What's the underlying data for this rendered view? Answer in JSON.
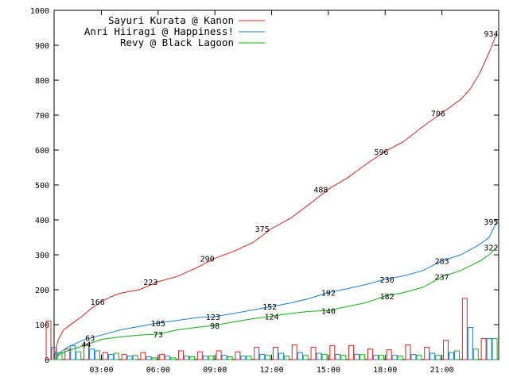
{
  "chart_data": {
    "type": "line",
    "title": "",
    "xlabel": "",
    "ylabel": "",
    "x_unit": "hours since 00:00",
    "xlim": [
      0.5,
      24.0
    ],
    "ylim": [
      0,
      1000
    ],
    "grid": false,
    "legend_position": "top-left",
    "y_ticks": [
      "0",
      "100",
      "200",
      "300",
      "400",
      "500",
      "600",
      "700",
      "800",
      "900",
      "1000"
    ],
    "x_ticks": [
      {
        "x": 3,
        "label": "03:00"
      },
      {
        "x": 6,
        "label": "06:00"
      },
      {
        "x": 9,
        "label": "09:00"
      },
      {
        "x": 12,
        "label": "12:00"
      },
      {
        "x": 15,
        "label": "15:00"
      },
      {
        "x": 18,
        "label": "18:00"
      },
      {
        "x": 21,
        "label": "21:00"
      }
    ],
    "series": [
      {
        "name": "Sayuri Kurata @ Kanon",
        "color": "#e02020",
        "points": [
          [
            0.5,
            0
          ],
          [
            0.7,
            55
          ],
          [
            1.0,
            85
          ],
          [
            1.5,
            105
          ],
          [
            2.0,
            125
          ],
          [
            2.5,
            148
          ],
          [
            3.0,
            166
          ],
          [
            3.5,
            180
          ],
          [
            4.0,
            190
          ],
          [
            5.0,
            200
          ],
          [
            6.0,
            223
          ],
          [
            7.0,
            238
          ],
          [
            8.0,
            262
          ],
          [
            9.0,
            290
          ],
          [
            10.0,
            310
          ],
          [
            11.0,
            335
          ],
          [
            12.0,
            375
          ],
          [
            13.0,
            405
          ],
          [
            14.0,
            445
          ],
          [
            15.0,
            488
          ],
          [
            16.0,
            520
          ],
          [
            17.0,
            560
          ],
          [
            18.0,
            596
          ],
          [
            19.0,
            625
          ],
          [
            20.0,
            668
          ],
          [
            21.0,
            706
          ],
          [
            22.0,
            745
          ],
          [
            22.5,
            775
          ],
          [
            23.0,
            820
          ],
          [
            23.5,
            880
          ],
          [
            23.9,
            934
          ]
        ],
        "labels": [
          {
            "x": 2.8,
            "y": 166,
            "text": "166"
          },
          {
            "x": 5.6,
            "y": 223,
            "text": "223"
          },
          {
            "x": 8.6,
            "y": 290,
            "text": "290"
          },
          {
            "x": 11.5,
            "y": 375,
            "text": "375"
          },
          {
            "x": 14.6,
            "y": 488,
            "text": "488"
          },
          {
            "x": 17.8,
            "y": 596,
            "text": "596"
          },
          {
            "x": 20.8,
            "y": 706,
            "text": "706"
          },
          {
            "x": 23.6,
            "y": 934,
            "text": "934"
          }
        ]
      },
      {
        "name": "Anri Hiiragi @ Happiness!",
        "color": "#1a7fd4",
        "points": [
          [
            0.5,
            0
          ],
          [
            0.8,
            20
          ],
          [
            1.2,
            35
          ],
          [
            1.6,
            45
          ],
          [
            2.0,
            55
          ],
          [
            2.5,
            63
          ],
          [
            3.0,
            70
          ],
          [
            4.0,
            85
          ],
          [
            5.0,
            95
          ],
          [
            6.0,
            105
          ],
          [
            7.0,
            112
          ],
          [
            8.0,
            120
          ],
          [
            9.0,
            123
          ],
          [
            10.0,
            132
          ],
          [
            11.0,
            142
          ],
          [
            12.0,
            152
          ],
          [
            13.0,
            162
          ],
          [
            14.0,
            175
          ],
          [
            15.0,
            192
          ],
          [
            16.0,
            203
          ],
          [
            17.0,
            215
          ],
          [
            18.0,
            230
          ],
          [
            19.0,
            240
          ],
          [
            20.0,
            255
          ],
          [
            21.0,
            283
          ],
          [
            22.0,
            300
          ],
          [
            23.0,
            330
          ],
          [
            23.5,
            350
          ],
          [
            23.9,
            395
          ]
        ],
        "labels": [
          {
            "x": 2.4,
            "y": 63,
            "text": "63"
          },
          {
            "x": 6.0,
            "y": 105,
            "text": "105"
          },
          {
            "x": 8.9,
            "y": 123,
            "text": "123"
          },
          {
            "x": 11.9,
            "y": 152,
            "text": "152"
          },
          {
            "x": 15.0,
            "y": 192,
            "text": "192"
          },
          {
            "x": 18.1,
            "y": 230,
            "text": "230"
          },
          {
            "x": 21.0,
            "y": 283,
            "text": "283"
          },
          {
            "x": 23.6,
            "y": 395,
            "text": "395"
          }
        ]
      },
      {
        "name": "Revy @ Black Lagoon",
        "color": "#10b010",
        "points": [
          [
            0.5,
            0
          ],
          [
            0.8,
            15
          ],
          [
            1.2,
            25
          ],
          [
            1.8,
            35
          ],
          [
            2.3,
            44
          ],
          [
            3.0,
            58
          ],
          [
            4.0,
            65
          ],
          [
            5.0,
            70
          ],
          [
            6.0,
            73
          ],
          [
            7.0,
            85
          ],
          [
            8.0,
            92
          ],
          [
            9.0,
            98
          ],
          [
            10.0,
            108
          ],
          [
            11.0,
            117
          ],
          [
            12.0,
            124
          ],
          [
            13.0,
            132
          ],
          [
            14.0,
            138
          ],
          [
            15.0,
            140
          ],
          [
            16.0,
            152
          ],
          [
            17.0,
            163
          ],
          [
            18.0,
            182
          ],
          [
            19.0,
            192
          ],
          [
            20.0,
            207
          ],
          [
            21.0,
            237
          ],
          [
            22.0,
            255
          ],
          [
            23.0,
            282
          ],
          [
            23.5,
            300
          ],
          [
            23.9,
            322
          ]
        ],
        "labels": [
          {
            "x": 2.2,
            "y": 44,
            "text": "44"
          },
          {
            "x": 6.0,
            "y": 73,
            "text": "73"
          },
          {
            "x": 9.0,
            "y": 98,
            "text": "98"
          },
          {
            "x": 12.0,
            "y": 124,
            "text": "124"
          },
          {
            "x": 15.0,
            "y": 140,
            "text": "140"
          },
          {
            "x": 18.1,
            "y": 182,
            "text": "182"
          },
          {
            "x": 21.0,
            "y": 237,
            "text": "237"
          },
          {
            "x": 23.6,
            "y": 322,
            "text": "322"
          }
        ]
      }
    ],
    "hourly_bars": {
      "note": "small hourly count bars along the baseline for each series",
      "hours": [
        0.5,
        1.5,
        2.5,
        3.5,
        4.5,
        5.5,
        6.5,
        7.5,
        8.5,
        9.5,
        10.5,
        11.5,
        12.5,
        13.5,
        14.5,
        15.5,
        16.5,
        17.5,
        18.5,
        19.5,
        20.5,
        21.5,
        22.5,
        23.5
      ],
      "series_values": [
        [
          110,
          30,
          45,
          20,
          15,
          20,
          15,
          25,
          22,
          25,
          22,
          35,
          35,
          42,
          35,
          40,
          40,
          30,
          28,
          42,
          35,
          55,
          175,
          60
        ],
        [
          35,
          40,
          30,
          15,
          10,
          8,
          10,
          10,
          10,
          12,
          10,
          15,
          18,
          20,
          18,
          15,
          15,
          12,
          12,
          15,
          18,
          20,
          92,
          60
        ],
        [
          20,
          22,
          25,
          18,
          12,
          5,
          5,
          8,
          10,
          8,
          10,
          12,
          10,
          12,
          15,
          12,
          14,
          12,
          10,
          12,
          12,
          25,
          30,
          60
        ]
      ]
    }
  }
}
